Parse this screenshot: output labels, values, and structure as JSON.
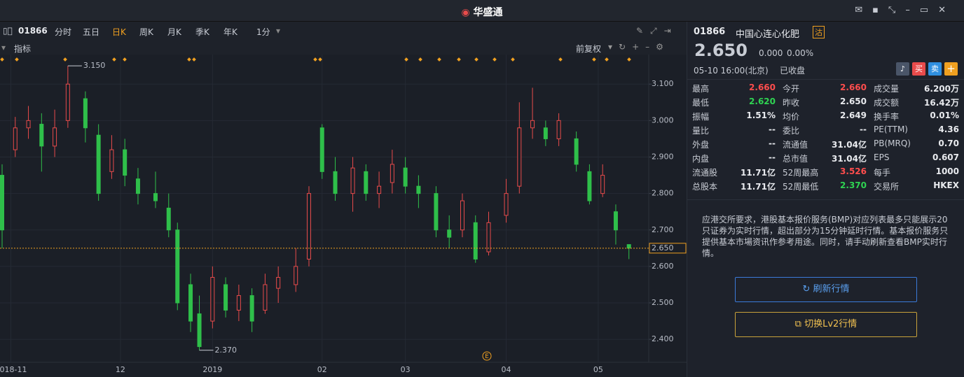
{
  "app": {
    "logo": "华盛通"
  },
  "toolbar": {
    "code": "01866",
    "tabs": [
      "分时",
      "五日",
      "日K",
      "周K",
      "月K",
      "季K",
      "年K",
      "1分"
    ],
    "indicator": "指标",
    "adjust": "前复权"
  },
  "chart_data": {
    "type": "candlestick",
    "up_color": "#e84b4b",
    "down_color": "#2fbf4a",
    "grid": true,
    "x": [
      0,
      3,
      6,
      9,
      12,
      15,
      19,
      22,
      25,
      28,
      31,
      35,
      38,
      40,
      43,
      45,
      48,
      51,
      54,
      57,
      60,
      63,
      67,
      70,
      73,
      76,
      80,
      83,
      86,
      89,
      92,
      95,
      99,
      102,
      105,
      108,
      111,
      115,
      118,
      121,
      124,
      127,
      131,
      134,
      137,
      140,
      143
    ],
    "open": [
      2.85,
      2.92,
      2.98,
      2.99,
      2.93,
      3.0,
      3.06,
      2.96,
      2.86,
      2.92,
      2.84,
      2.8,
      2.76,
      2.7,
      2.55,
      2.47,
      2.45,
      2.55,
      2.48,
      2.52,
      2.48,
      2.54,
      2.55,
      2.62,
      2.98,
      2.86,
      2.8,
      2.86,
      2.8,
      2.83,
      2.87,
      2.82,
      2.8,
      2.7,
      2.7,
      2.72,
      2.64,
      2.74,
      2.82,
      2.98,
      2.98,
      2.95,
      2.95,
      2.86,
      2.8,
      2.75,
      2.66
    ],
    "high": [
      2.88,
      3.01,
      3.04,
      3.02,
      3.03,
      3.15,
      3.08,
      2.99,
      2.96,
      2.95,
      2.87,
      2.86,
      2.8,
      2.72,
      2.58,
      2.52,
      2.6,
      2.57,
      2.55,
      2.54,
      2.58,
      2.6,
      2.65,
      2.82,
      2.99,
      2.9,
      2.9,
      2.88,
      2.86,
      2.92,
      2.9,
      2.85,
      2.82,
      2.74,
      2.8,
      2.74,
      2.75,
      2.84,
      3.05,
      3.09,
      3.0,
      3.02,
      2.97,
      2.88,
      2.88,
      2.77,
      2.66
    ],
    "low": [
      2.65,
      2.9,
      2.95,
      2.86,
      2.9,
      2.98,
      2.94,
      2.78,
      2.84,
      2.82,
      2.77,
      2.76,
      2.68,
      2.48,
      2.42,
      2.37,
      2.43,
      2.46,
      2.45,
      2.42,
      2.47,
      2.5,
      2.53,
      2.6,
      2.84,
      2.78,
      2.75,
      2.78,
      2.76,
      2.8,
      2.8,
      2.76,
      2.68,
      2.65,
      2.68,
      2.61,
      2.63,
      2.72,
      2.8,
      2.95,
      2.93,
      2.93,
      2.86,
      2.77,
      2.79,
      2.66,
      2.62
    ],
    "close": [
      2.7,
      2.98,
      3.0,
      2.93,
      2.98,
      3.1,
      2.98,
      2.8,
      2.92,
      2.85,
      2.8,
      2.78,
      2.7,
      2.5,
      2.45,
      2.38,
      2.57,
      2.48,
      2.52,
      2.45,
      2.55,
      2.57,
      2.6,
      2.8,
      2.86,
      2.8,
      2.87,
      2.8,
      2.82,
      2.88,
      2.82,
      2.8,
      2.7,
      2.68,
      2.78,
      2.62,
      2.72,
      2.8,
      2.98,
      3.0,
      2.95,
      3.0,
      2.88,
      2.78,
      2.85,
      2.7,
      2.65
    ],
    "xlim": [
      -0.48,
      147.52
    ],
    "xticks": [
      {
        "value": 2,
        "label": "2018-11"
      },
      {
        "value": 27,
        "label": "12"
      },
      {
        "value": 48,
        "label": "2019"
      },
      {
        "value": 73,
        "label": "02"
      },
      {
        "value": 92,
        "label": "03"
      },
      {
        "value": 115,
        "label": "04"
      },
      {
        "value": 136,
        "label": "05"
      }
    ],
    "ylim": [
      2.337,
      3.181
    ],
    "yticks": [
      {
        "value": 3.1,
        "label": "3.100"
      },
      {
        "value": 3.0,
        "label": "3.000"
      },
      {
        "value": 2.9,
        "label": "2.900"
      },
      {
        "value": 2.8,
        "label": "2.800"
      },
      {
        "value": 2.7,
        "label": "2.700"
      },
      {
        "value": 2.6,
        "label": "2.600"
      },
      {
        "value": 2.5,
        "label": "2.500"
      },
      {
        "value": 2.4,
        "label": "2.400"
      }
    ],
    "annotations": [
      {
        "x": 15,
        "y": 3.15,
        "label": "3.150"
      },
      {
        "x": 45,
        "y": 2.37,
        "label": "2.370"
      }
    ],
    "price_line": {
      "value": 2.65,
      "label": "2.650"
    },
    "event_label": "E"
  },
  "quote": {
    "code": "01866",
    "name": "中国心连心化肥",
    "badge": "沽",
    "price": "2.650",
    "change": "0.000",
    "change_pct": "0.00%",
    "time": "05-10 16:00(北京)",
    "status": "已收盘",
    "buy": "买",
    "sell": "卖",
    "add": "+",
    "rows": [
      [
        {
          "label": "最高",
          "value": "2.660",
          "color": "#ff4d4d"
        },
        {
          "label": "今开",
          "value": "2.660",
          "color": "#ff4d4d"
        },
        {
          "label": "成交量",
          "value": "6.200万"
        }
      ],
      [
        {
          "label": "最低",
          "value": "2.620",
          "color": "#2fd352"
        },
        {
          "label": "昨收",
          "value": "2.650"
        },
        {
          "label": "成交额",
          "value": "16.42万"
        }
      ],
      [
        {
          "label": "振幅",
          "value": "1.51%"
        },
        {
          "label": "均价",
          "value": "2.649"
        },
        {
          "label": "换手率",
          "value": "0.01%"
        }
      ],
      [
        {
          "label": "量比",
          "value": "--"
        },
        {
          "label": "委比",
          "value": "--"
        },
        {
          "label": "PE(TTM)",
          "value": "4.36"
        }
      ],
      [
        {
          "label": "外盘",
          "value": "--"
        },
        {
          "label": "流通值",
          "value": "31.04亿"
        },
        {
          "label": "PB(MRQ)",
          "value": "0.70"
        }
      ],
      [
        {
          "label": "内盘",
          "value": "--"
        },
        {
          "label": "总市值",
          "value": "31.04亿"
        },
        {
          "label": "EPS",
          "value": "0.607"
        }
      ],
      [
        {
          "label": "流通股",
          "value": "11.71亿"
        },
        {
          "label": "52周最高",
          "value": "3.526",
          "color": "#ff4d4d"
        },
        {
          "label": "每手",
          "value": "1000"
        }
      ],
      [
        {
          "label": "总股本",
          "value": "11.71亿"
        },
        {
          "label": "52周最低",
          "value": "2.370",
          "color": "#2fd352"
        },
        {
          "label": "交易所",
          "value": "HKEX"
        }
      ]
    ],
    "notice": "应港交所要求，港股基本报价服务(BMP)对应列表最多只能展示20只证券为实时行情，超出部分为15分钟延时行情。基本报价服务只提供基本市場资讯作参考用途。同时，请手动刷新查看BMP实时行情。",
    "refresh": "刷新行情",
    "switch": "切换Lv2行情"
  }
}
